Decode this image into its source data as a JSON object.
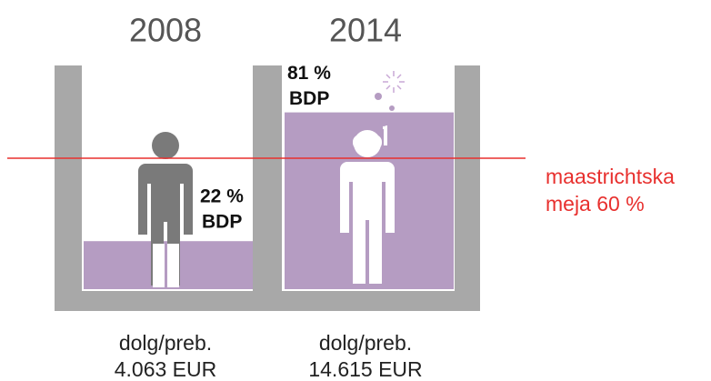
{
  "chart_data": {
    "type": "bar",
    "categories": [
      "2008",
      "2014"
    ],
    "values": [
      22,
      81
    ],
    "value_labels": [
      "22 %",
      "81 %"
    ],
    "value_sublabel": "BDP",
    "ylim": [
      0,
      100
    ],
    "color": "#b59cc2",
    "threshold": {
      "value": 60,
      "label": [
        "maastrichtska",
        "meja 60 %"
      ],
      "color": "#e8302e"
    },
    "per_capita_label": "dolg/preb.",
    "per_capita": [
      "4.063 EUR",
      "14.615 EUR"
    ]
  }
}
